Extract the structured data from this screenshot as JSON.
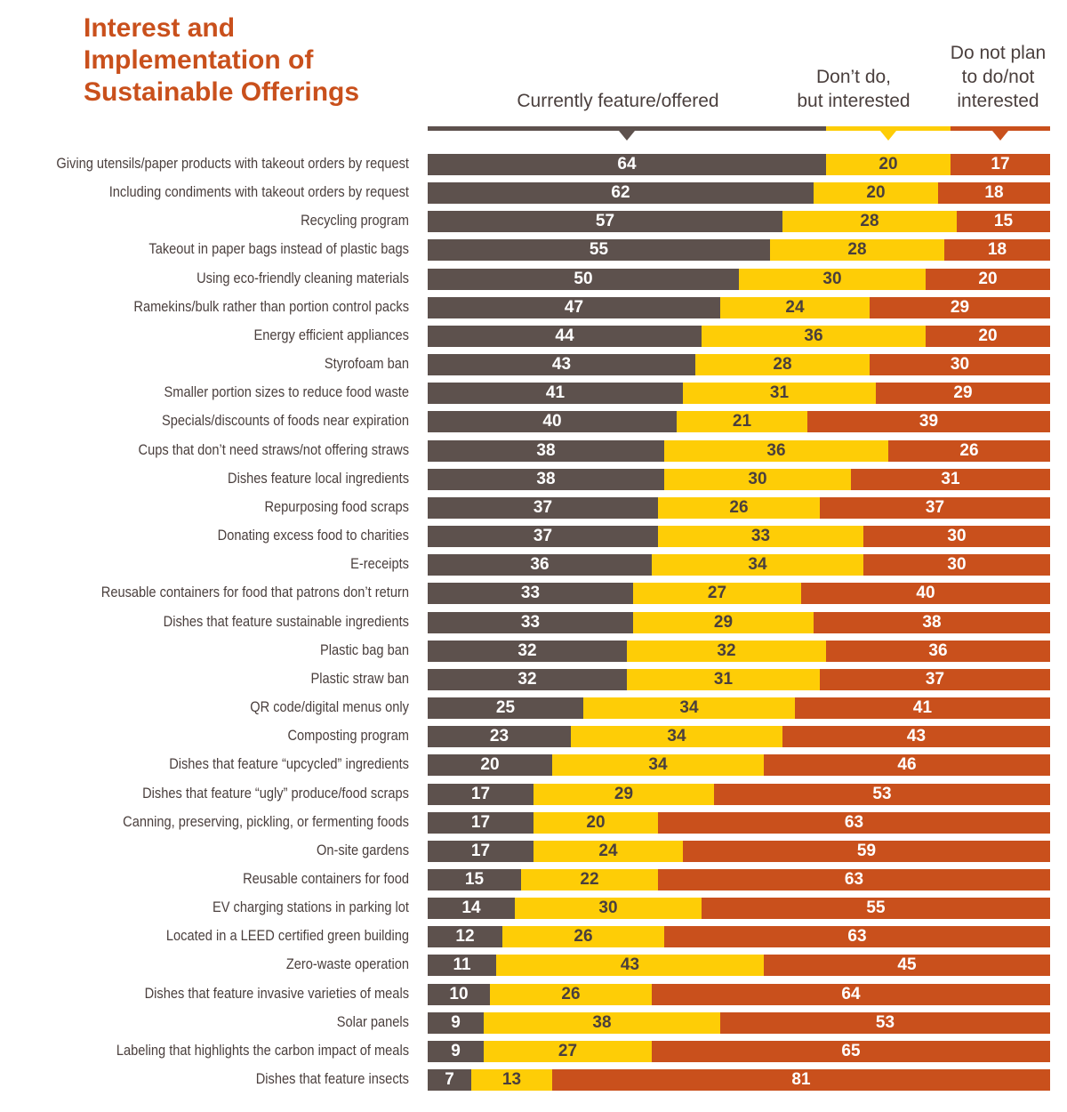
{
  "chart_data": {
    "type": "bar",
    "stacked": true,
    "orientation": "horizontal",
    "title": "Interest and Implementation of Sustainable Offerings",
    "title_lines": [
      "Interest and",
      "Implementation of",
      "Sustainable Offerings"
    ],
    "legend_placement": "top",
    "series": [
      {
        "name": "Currently feature/offered",
        "color": "#5d514d",
        "text_color": "#ffffff",
        "values": [
          64,
          62,
          57,
          55,
          50,
          47,
          44,
          43,
          41,
          40,
          38,
          38,
          37,
          37,
          36,
          33,
          33,
          32,
          32,
          25,
          23,
          20,
          17,
          17,
          17,
          15,
          14,
          12,
          11,
          10,
          9,
          9,
          7
        ]
      },
      {
        "name": "Don’t do, but interested",
        "name_lines": [
          "Don’t do,",
          "but interested"
        ],
        "color": "#fecd06",
        "text_color": "#4a3f3d",
        "values": [
          20,
          20,
          28,
          28,
          30,
          24,
          36,
          28,
          31,
          21,
          36,
          30,
          26,
          33,
          34,
          27,
          29,
          32,
          31,
          34,
          34,
          34,
          29,
          20,
          24,
          22,
          30,
          26,
          43,
          26,
          38,
          27,
          13
        ]
      },
      {
        "name": "Do not plan to do/not interested",
        "name_lines": [
          "Do not plan",
          "to do/not",
          "interested"
        ],
        "color": "#c9501c",
        "text_color": "#ffffff",
        "values": [
          17,
          18,
          15,
          18,
          20,
          29,
          20,
          30,
          29,
          39,
          26,
          31,
          37,
          30,
          30,
          40,
          38,
          36,
          37,
          41,
          43,
          46,
          53,
          63,
          59,
          63,
          55,
          63,
          45,
          64,
          53,
          65,
          81
        ]
      }
    ],
    "categories": [
      "Giving utensils/paper products with takeout orders by request",
      "Including condiments with takeout orders by request",
      "Recycling program",
      "Takeout in paper bags instead of plastic bags",
      "Using eco-friendly cleaning materials",
      "Ramekins/bulk rather than portion control packs",
      "Energy efficient appliances",
      "Styrofoam ban",
      "Smaller portion sizes to reduce food waste",
      "Specials/discounts of foods near expiration",
      "Cups that don’t need straws/not offering straws",
      "Dishes feature local ingredients",
      "Repurposing food scraps",
      "Donating excess food to charities",
      "E-receipts",
      "Reusable containers for food that patrons don’t return",
      "Dishes that feature sustainable ingredients",
      "Plastic bag ban",
      "Plastic straw ban",
      "QR code/digital menus only",
      "Composting program",
      "Dishes that feature “upcycled” ingredients",
      "Dishes that feature “ugly” produce/food scraps",
      "Canning, preserving, pickling, or fermenting foods",
      "On-site gardens",
      "Reusable containers for food",
      "EV charging stations in parking lot",
      "Located in a LEED certified green building",
      "Zero-waste operation",
      "Dishes that feature invasive varieties of meals",
      "Solar panels",
      "Labeling that highlights the carbon impact of meals",
      "Dishes that feature insects"
    ],
    "xlim": [
      0,
      100
    ],
    "grid": false
  }
}
